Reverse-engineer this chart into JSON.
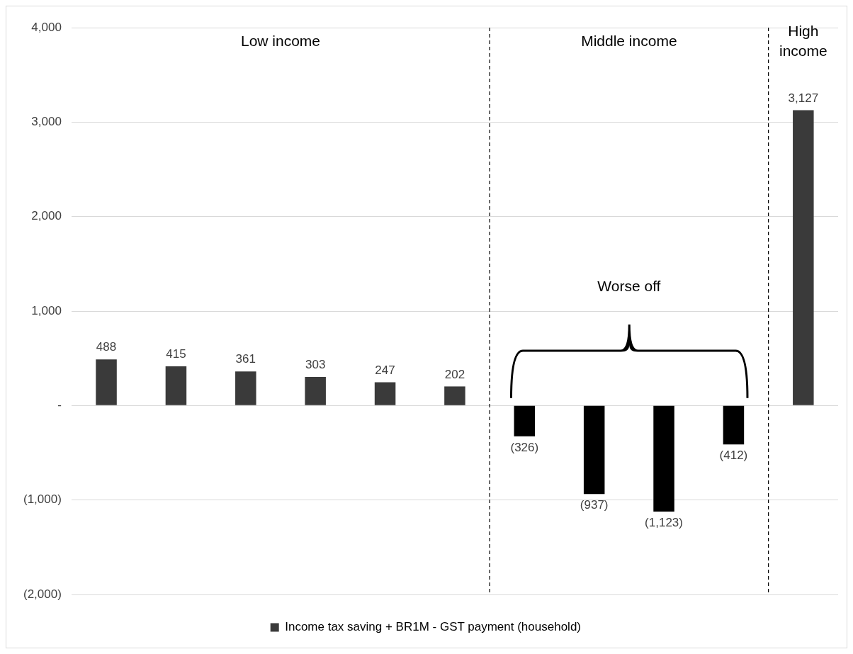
{
  "chart_data": {
    "type": "bar",
    "categories": [
      null,
      null,
      null,
      null,
      null,
      null,
      null,
      null,
      null,
      null,
      null
    ],
    "series": [
      {
        "name": "Income tax saving + BR1M - GST payment (household)",
        "color": "#3a3a3a",
        "colors": [
          "#3a3a3a",
          "#3a3a3a",
          "#3a3a3a",
          "#3a3a3a",
          "#3a3a3a",
          "#3a3a3a",
          "#000000",
          "#000000",
          "#000000",
          "#000000",
          "#3a3a3a"
        ],
        "values": [
          488,
          415,
          361,
          303,
          247,
          202,
          -326,
          -937,
          -1123,
          -412,
          3127
        ],
        "value_labels": [
          "488",
          "415",
          "361",
          "303",
          "247",
          "202",
          "(326)",
          "(937)",
          "(1,123)",
          "(412)",
          "3,127"
        ]
      }
    ],
    "ylim": [
      -2000,
      4000
    ],
    "yticks": [
      {
        "value": 4000,
        "label": "4,000"
      },
      {
        "value": 3000,
        "label": "3,000"
      },
      {
        "value": 2000,
        "label": "2,000"
      },
      {
        "value": 1000,
        "label": "1,000"
      },
      {
        "value": 0,
        "label": "-"
      },
      {
        "value": -1000,
        "label": "(1,000)"
      },
      {
        "value": -2000,
        "label": "(2,000)"
      }
    ],
    "grid": "y",
    "legend": "bottom",
    "annotations": [
      "Low income",
      "Middle income",
      "High income",
      "Worse off"
    ]
  }
}
